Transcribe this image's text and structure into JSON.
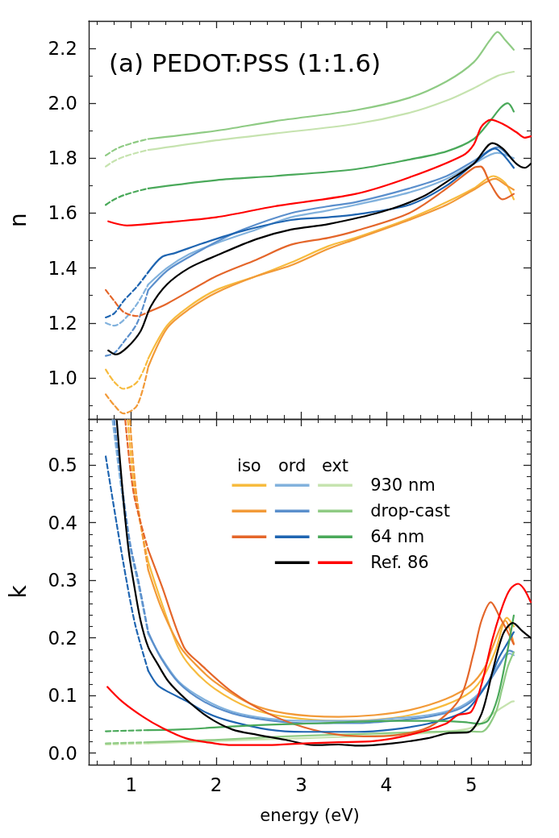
{
  "chart_data": [
    {
      "type": "line",
      "title": "(a) PEDOT:PSS (1:1.6)",
      "ylabel": "n",
      "xlim": [
        0.5,
        5.7
      ],
      "ylim": [
        0.85,
        2.3
      ],
      "xticks": [
        {
          "value": 0.6,
          "label": null
        },
        {
          "value": 0.8,
          "label": null
        },
        1,
        {
          "value": 1.2,
          "label": null
        },
        {
          "value": 1.4,
          "label": null
        },
        {
          "value": 1.6,
          "label": null
        },
        {
          "value": 1.8,
          "label": null
        },
        2,
        {
          "value": 2.2,
          "label": null
        },
        {
          "value": 2.4,
          "label": null
        },
        {
          "value": 2.6,
          "label": null
        },
        {
          "value": 2.8,
          "label": null
        },
        3,
        {
          "value": 3.2,
          "label": null
        },
        {
          "value": 3.4,
          "label": null
        },
        {
          "value": 3.6,
          "label": null
        },
        {
          "value": 3.8,
          "label": null
        },
        4,
        {
          "value": 4.2,
          "label": null
        },
        {
          "value": 4.4,
          "label": null
        },
        {
          "value": 4.6,
          "label": null
        },
        {
          "value": 4.8,
          "label": null
        },
        5,
        {
          "value": 5.2,
          "label": null
        },
        {
          "value": 5.4,
          "label": null
        },
        {
          "value": 5.6,
          "label": null
        }
      ],
      "yticks": [
        {
          "value": 0.9,
          "label": null
        },
        {
          "value": 1,
          "label": "1.0"
        },
        {
          "value": 1.1,
          "label": null
        },
        1.2,
        {
          "value": 1.3,
          "label": null
        },
        1.4,
        {
          "value": 1.5,
          "label": null
        },
        1.6,
        {
          "value": 1.7,
          "label": null
        },
        1.8,
        {
          "value": 1.9,
          "label": null
        },
        {
          "value": 2,
          "label": "2.0"
        },
        {
          "value": 2.1,
          "label": null
        },
        2.2
      ],
      "tick_labels": "y",
      "series": [
        {
          "color": "#f7bb3e",
          "line_style": "dashed",
          "x": [
            0.7,
            0.8,
            0.91,
            1.07,
            1.2
          ],
          "values": [
            1.03,
            0.985,
            0.96,
            0.985,
            1.07
          ]
        },
        {
          "color": "#f7bb3e",
          "x": [
            1.2,
            1.42,
            1.68,
            2.0,
            2.47,
            2.88,
            3.32,
            3.64,
            4.27,
            4.71,
            5.03,
            5.26,
            5.4,
            5.5
          ],
          "values": [
            1.07,
            1.19,
            1.26,
            1.32,
            1.37,
            1.42,
            1.48,
            1.51,
            1.58,
            1.64,
            1.69,
            1.735,
            1.71,
            1.65
          ]
        },
        {
          "color": "#82b2dd",
          "line_style": "dashed",
          "x": [
            0.7,
            0.8,
            0.91,
            1.07,
            1.2
          ],
          "values": [
            1.2,
            1.19,
            1.21,
            1.27,
            1.34
          ]
        },
        {
          "color": "#82b2dd",
          "x": [
            1.2,
            1.42,
            1.68,
            2.0,
            2.47,
            2.88,
            3.32,
            3.64,
            4.27,
            4.71,
            5.03,
            5.31,
            5.42,
            5.5
          ],
          "values": [
            1.34,
            1.4,
            1.45,
            1.49,
            1.54,
            1.585,
            1.61,
            1.63,
            1.675,
            1.725,
            1.78,
            1.82,
            1.81,
            1.8
          ]
        },
        {
          "color": "#c6e3af",
          "line_style": "dashed",
          "x": [
            0.7,
            0.8,
            0.91,
            1.07,
            1.2
          ],
          "values": [
            1.77,
            1.79,
            1.805,
            1.82,
            1.83
          ]
        },
        {
          "color": "#c6e3af",
          "x": [
            1.2,
            2.0,
            2.69,
            3.64,
            4.27,
            4.71,
            5.03,
            5.31,
            5.5
          ],
          "values": [
            1.83,
            1.865,
            1.89,
            1.925,
            1.965,
            2.01,
            2.055,
            2.1,
            2.115
          ]
        },
        {
          "color": "#f29a38",
          "line_style": "dashed",
          "x": [
            0.7,
            0.8,
            0.91,
            1.07,
            1.2
          ],
          "values": [
            0.94,
            0.9,
            0.87,
            0.9,
            1.04
          ]
        },
        {
          "color": "#f29a38",
          "x": [
            1.2,
            1.42,
            1.68,
            2.0,
            2.47,
            2.88,
            3.32,
            3.64,
            4.27,
            4.71,
            5.03,
            5.28,
            5.42,
            5.5
          ],
          "values": [
            1.04,
            1.18,
            1.25,
            1.31,
            1.37,
            1.41,
            1.47,
            1.505,
            1.575,
            1.63,
            1.685,
            1.725,
            1.7,
            1.685
          ]
        },
        {
          "color": "#5b8fcc",
          "line_style": "dashed",
          "x": [
            0.7,
            0.8,
            0.91,
            1.07,
            1.2
          ],
          "values": [
            1.08,
            1.09,
            1.13,
            1.2,
            1.32
          ]
        },
        {
          "color": "#5b8fcc",
          "x": [
            1.2,
            1.42,
            1.68,
            2.0,
            2.31,
            2.88,
            3.32,
            3.64,
            4.27,
            4.71,
            5.03,
            5.31,
            5.42,
            5.5
          ],
          "values": [
            1.32,
            1.39,
            1.44,
            1.495,
            1.54,
            1.6,
            1.625,
            1.64,
            1.69,
            1.735,
            1.79,
            1.84,
            1.815,
            1.79
          ]
        },
        {
          "color": "#8fcb84",
          "line_style": "dashed",
          "x": [
            0.7,
            0.8,
            0.91,
            1.07,
            1.2
          ],
          "values": [
            1.81,
            1.83,
            1.845,
            1.86,
            1.87
          ]
        },
        {
          "color": "#8fcb84",
          "x": [
            1.2,
            2.0,
            2.69,
            3.64,
            4.27,
            4.71,
            5.03,
            5.22,
            5.31,
            5.4,
            5.5
          ],
          "values": [
            1.87,
            1.9,
            1.935,
            1.975,
            2.02,
            2.08,
            2.15,
            2.23,
            2.26,
            2.23,
            2.195
          ]
        },
        {
          "color": "#e4662a",
          "line_style": "dashed",
          "x": [
            0.7,
            0.8,
            0.91,
            1.07,
            1.2
          ],
          "values": [
            1.32,
            1.28,
            1.24,
            1.225,
            1.24
          ]
        },
        {
          "color": "#e4662a",
          "x": [
            1.2,
            1.42,
            2.0,
            2.47,
            2.88,
            3.32,
            3.64,
            4.27,
            4.71,
            5.03,
            5.11,
            5.22,
            5.37,
            5.5
          ],
          "values": [
            1.24,
            1.27,
            1.37,
            1.43,
            1.485,
            1.51,
            1.535,
            1.6,
            1.69,
            1.765,
            1.77,
            1.71,
            1.65,
            1.67
          ]
        },
        {
          "color": "#1f65b1",
          "line_style": "dashed",
          "x": [
            0.7,
            0.8,
            0.91,
            1.07,
            1.2
          ],
          "values": [
            1.22,
            1.235,
            1.28,
            1.333,
            1.385
          ]
        },
        {
          "color": "#1f65b1",
          "x": [
            1.2,
            1.36,
            1.52,
            1.84,
            2.31,
            2.88,
            3.32,
            3.64,
            4.27,
            4.71,
            5.03,
            5.28,
            5.37,
            5.5
          ],
          "values": [
            1.385,
            1.44,
            1.455,
            1.49,
            1.535,
            1.575,
            1.585,
            1.595,
            1.63,
            1.7,
            1.78,
            1.835,
            1.815,
            1.765
          ]
        },
        {
          "color": "#4aa95a",
          "line_style": "dashed",
          "x": [
            0.7,
            0.8,
            0.91,
            1.07,
            1.2
          ],
          "values": [
            1.63,
            1.65,
            1.665,
            1.68,
            1.69
          ]
        },
        {
          "color": "#4aa95a",
          "x": [
            1.2,
            2.0,
            2.69,
            3.64,
            4.27,
            4.71,
            5.03,
            5.22,
            5.35,
            5.43,
            5.5
          ],
          "values": [
            1.69,
            1.72,
            1.735,
            1.76,
            1.795,
            1.825,
            1.87,
            1.935,
            1.985,
            2.0,
            1.97
          ]
        },
        {
          "color": "#000000",
          "x": [
            0.73,
            0.82,
            0.95,
            1.11,
            1.23,
            1.42,
            1.68,
            2.0,
            2.47,
            2.88,
            3.32,
            3.95,
            4.43,
            4.74,
            5.03,
            5.25,
            5.37,
            5.53,
            5.63,
            5.7
          ],
          "values": [
            1.1,
            1.085,
            1.11,
            1.17,
            1.26,
            1.34,
            1.4,
            1.445,
            1.505,
            1.54,
            1.56,
            1.605,
            1.66,
            1.72,
            1.78,
            1.855,
            1.835,
            1.78,
            1.765,
            1.78
          ]
        },
        {
          "color": "#ff0000",
          "x": [
            0.73,
            0.95,
            1.36,
            2.0,
            2.69,
            3.64,
            4.27,
            4.9,
            5.03,
            5.12,
            5.23,
            5.37,
            5.53,
            5.63,
            5.7
          ],
          "values": [
            1.57,
            1.555,
            1.565,
            1.585,
            1.625,
            1.67,
            1.73,
            1.81,
            1.85,
            1.915,
            1.94,
            1.925,
            1.895,
            1.875,
            1.88
          ]
        }
      ]
    },
    {
      "type": "line",
      "xlabel": "energy (eV)",
      "ylabel": "k",
      "xlim": [
        0.5,
        5.7
      ],
      "ylim": [
        -0.02,
        0.58
      ],
      "xticks": [
        {
          "value": 0.6,
          "label": null
        },
        {
          "value": 0.8,
          "label": null
        },
        1,
        {
          "value": 1.2,
          "label": null
        },
        {
          "value": 1.4,
          "label": null
        },
        {
          "value": 1.6,
          "label": null
        },
        {
          "value": 1.8,
          "label": null
        },
        2,
        {
          "value": 2.2,
          "label": null
        },
        {
          "value": 2.4,
          "label": null
        },
        {
          "value": 2.6,
          "label": null
        },
        {
          "value": 2.8,
          "label": null
        },
        3,
        {
          "value": 3.2,
          "label": null
        },
        {
          "value": 3.4,
          "label": null
        },
        {
          "value": 3.6,
          "label": null
        },
        {
          "value": 3.8,
          "label": null
        },
        4,
        {
          "value": 4.2,
          "label": null
        },
        {
          "value": 4.4,
          "label": null
        },
        {
          "value": 4.6,
          "label": null
        },
        {
          "value": 4.8,
          "label": null
        },
        5,
        {
          "value": 5.2,
          "label": null
        },
        {
          "value": 5.4,
          "label": null
        },
        {
          "value": 5.6,
          "label": null
        }
      ],
      "yticks": [
        {
          "value": 0,
          "label": "0.0"
        },
        {
          "value": 0.02,
          "label": null
        },
        {
          "value": 0.04,
          "label": null
        },
        {
          "value": 0.06,
          "label": null
        },
        {
          "value": 0.08,
          "label": null
        },
        0.1,
        {
          "value": 0.12,
          "label": null
        },
        {
          "value": 0.14,
          "label": null
        },
        {
          "value": 0.16,
          "label": null
        },
        {
          "value": 0.18,
          "label": null
        },
        0.2,
        {
          "value": 0.22,
          "label": null
        },
        {
          "value": 0.24,
          "label": null
        },
        {
          "value": 0.26,
          "label": null
        },
        {
          "value": 0.28,
          "label": null
        },
        0.3,
        {
          "value": 0.32,
          "label": null
        },
        {
          "value": 0.34,
          "label": null
        },
        {
          "value": 0.36,
          "label": null
        },
        {
          "value": 0.38,
          "label": null
        },
        0.4,
        {
          "value": 0.42,
          "label": null
        },
        {
          "value": 0.44,
          "label": null
        },
        {
          "value": 0.46,
          "label": null
        },
        {
          "value": 0.48,
          "label": null
        },
        0.5,
        {
          "value": 0.52,
          "label": null
        },
        {
          "value": 0.54,
          "label": null
        },
        {
          "value": 0.56,
          "label": null
        }
      ],
      "legend": "top right",
      "annotations": [
        "iso",
        "ord",
        "ext"
      ],
      "series": [
        {
          "color": "#f7bb3e",
          "line_style": "dashed",
          "x": [
            0.96,
            1.045,
            1.2
          ],
          "values": [
            0.578,
            0.45,
            0.332
          ]
        },
        {
          "color": "#f7bb3e",
          "x": [
            1.2,
            1.36,
            1.55,
            1.7,
            1.98,
            2.4,
            2.82,
            3.44,
            3.86,
            4.28,
            4.7,
            4.99,
            5.16,
            5.29,
            5.42,
            5.5
          ],
          "values": [
            0.332,
            0.26,
            0.184,
            0.15,
            0.112,
            0.078,
            0.063,
            0.056,
            0.058,
            0.066,
            0.084,
            0.106,
            0.137,
            0.18,
            0.235,
            0.22
          ]
        },
        {
          "color": "#82b2dd",
          "line_style": "dashed",
          "x": [
            0.78,
            0.89,
            0.98,
            1.08,
            1.2
          ],
          "values": [
            0.578,
            0.452,
            0.36,
            0.295,
            0.207
          ]
        },
        {
          "color": "#82b2dd",
          "x": [
            1.2,
            1.35,
            1.56,
            1.85,
            2.19,
            2.61,
            3.03,
            3.65,
            4.07,
            4.49,
            4.83,
            5.04,
            5.2,
            5.33,
            5.45,
            5.5
          ],
          "values": [
            0.207,
            0.167,
            0.124,
            0.094,
            0.072,
            0.06,
            0.056,
            0.056,
            0.06,
            0.066,
            0.078,
            0.097,
            0.124,
            0.155,
            0.173,
            0.17
          ]
        },
        {
          "color": "#c6e3af",
          "line_style": "dashed",
          "x": [
            0.7,
            0.95,
            1.2
          ],
          "values": [
            0.015,
            0.016,
            0.017
          ]
        },
        {
          "name": "930 nm",
          "color": "#c6e3af",
          "x": [
            1.2,
            1.98,
            2.82,
            3.65,
            4.49,
            4.91,
            5.1,
            5.25,
            5.47,
            5.5
          ],
          "values": [
            0.017,
            0.021,
            0.025,
            0.029,
            0.035,
            0.041,
            0.05,
            0.068,
            0.089,
            0.09
          ]
        },
        {
          "color": "#f29a38",
          "line_style": "dashed",
          "x": [
            0.985,
            1.06,
            1.2
          ],
          "values": [
            0.578,
            0.45,
            0.318
          ]
        },
        {
          "color": "#f29a38",
          "x": [
            1.2,
            1.36,
            1.58,
            1.75,
            1.98,
            2.4,
            2.82,
            3.44,
            3.86,
            4.28,
            4.7,
            4.99,
            5.16,
            5.24,
            5.4,
            5.5
          ],
          "values": [
            0.318,
            0.25,
            0.184,
            0.155,
            0.124,
            0.086,
            0.069,
            0.063,
            0.066,
            0.075,
            0.094,
            0.118,
            0.149,
            0.18,
            0.23,
            0.19
          ]
        },
        {
          "color": "#5b8fcc",
          "line_style": "dashed",
          "x": [
            0.8,
            0.9,
            0.99,
            1.09,
            1.2
          ],
          "values": [
            0.578,
            0.455,
            0.362,
            0.295,
            0.21
          ]
        },
        {
          "color": "#5b8fcc",
          "x": [
            1.2,
            1.35,
            1.56,
            1.85,
            2.19,
            2.61,
            3.03,
            3.65,
            4.07,
            4.49,
            4.83,
            5.04,
            5.2,
            5.33,
            5.45,
            5.5
          ],
          "values": [
            0.21,
            0.165,
            0.122,
            0.09,
            0.069,
            0.057,
            0.052,
            0.052,
            0.056,
            0.063,
            0.075,
            0.094,
            0.122,
            0.152,
            0.178,
            0.175
          ]
        },
        {
          "color": "#8fcb84",
          "line_style": "dashed",
          "x": [
            0.7,
            0.95,
            1.2
          ],
          "values": [
            0.017,
            0.018,
            0.019
          ]
        },
        {
          "name": "drop-cast",
          "color": "#8fcb84",
          "x": [
            1.2,
            1.98,
            2.82,
            3.65,
            4.49,
            4.91,
            5.12,
            5.28,
            5.36,
            5.43,
            5.5
          ],
          "values": [
            0.019,
            0.023,
            0.029,
            0.033,
            0.037,
            0.038,
            0.037,
            0.068,
            0.11,
            0.15,
            0.175
          ]
        },
        {
          "color": "#e4662a",
          "line_style": "dashed",
          "x": [
            0.93,
            1.03,
            1.2
          ],
          "values": [
            0.578,
            0.45,
            0.353
          ]
        },
        {
          "color": "#e4662a",
          "x": [
            1.2,
            1.36,
            1.62,
            1.81,
            2.19,
            2.61,
            3.03,
            3.44,
            3.86,
            4.28,
            4.57,
            4.87,
            5.03,
            5.12,
            5.23,
            5.34,
            5.41,
            5.5
          ],
          "values": [
            0.353,
            0.29,
            0.184,
            0.155,
            0.106,
            0.069,
            0.045,
            0.032,
            0.029,
            0.035,
            0.051,
            0.096,
            0.175,
            0.23,
            0.262,
            0.235,
            0.216,
            0.189
          ]
        },
        {
          "color": "#1f65b1",
          "line_style": "dashed",
          "x": [
            0.7,
            0.83,
            0.95,
            1.05,
            1.2
          ],
          "values": [
            0.515,
            0.397,
            0.295,
            0.221,
            0.143
          ]
        },
        {
          "color": "#1f65b1",
          "x": [
            1.2,
            1.31,
            1.44,
            1.64,
            1.9,
            2.15,
            2.61,
            3.03,
            3.65,
            4.07,
            4.49,
            4.83,
            4.99,
            5.2,
            5.33,
            5.43,
            5.5
          ],
          "values": [
            0.143,
            0.118,
            0.106,
            0.091,
            0.069,
            0.056,
            0.041,
            0.037,
            0.037,
            0.041,
            0.051,
            0.066,
            0.081,
            0.124,
            0.167,
            0.192,
            0.21
          ]
        },
        {
          "color": "#4aa95a",
          "line_style": "dashed",
          "x": [
            0.7,
            0.95,
            1.2
          ],
          "values": [
            0.038,
            0.039,
            0.04
          ]
        },
        {
          "name": "64 nm",
          "color": "#4aa95a",
          "x": [
            1.2,
            1.56,
            2.4,
            3.24,
            4.07,
            4.49,
            4.91,
            5.1,
            5.2,
            5.31,
            5.41,
            5.5
          ],
          "values": [
            0.04,
            0.041,
            0.048,
            0.052,
            0.056,
            0.056,
            0.054,
            0.051,
            0.057,
            0.096,
            0.165,
            0.239
          ]
        },
        {
          "color": "#000000",
          "x": [
            0.83,
            0.9,
            0.97,
            1.03,
            1.11,
            1.2,
            1.31,
            1.44,
            1.64,
            1.9,
            2.19,
            2.48,
            2.82,
            3.15,
            3.44,
            3.65,
            4.07,
            4.49,
            4.74,
            4.96,
            5.12,
            5.25,
            5.375,
            5.49,
            5.6,
            5.7
          ],
          "values": [
            0.577,
            0.452,
            0.351,
            0.295,
            0.23,
            0.184,
            0.155,
            0.124,
            0.094,
            0.063,
            0.041,
            0.032,
            0.023,
            0.014,
            0.015,
            0.013,
            0.017,
            0.026,
            0.035,
            0.036,
            0.068,
            0.142,
            0.207,
            0.226,
            0.212,
            0.2
          ]
        },
        {
          "name": "Ref. 86",
          "color": "#ff0000",
          "x": [
            0.72,
            0.89,
            1.14,
            1.35,
            1.64,
            1.98,
            2.19,
            2.61,
            3.03,
            3.44,
            3.86,
            4.28,
            4.7,
            4.84,
            5.0,
            5.12,
            5.25,
            5.375,
            5.46,
            5.55,
            5.62,
            5.7
          ],
          "values": [
            0.115,
            0.09,
            0.063,
            0.045,
            0.026,
            0.017,
            0.014,
            0.014,
            0.017,
            0.019,
            0.021,
            0.032,
            0.051,
            0.066,
            0.072,
            0.119,
            0.198,
            0.258,
            0.285,
            0.294,
            0.285,
            0.262
          ]
        }
      ]
    }
  ]
}
